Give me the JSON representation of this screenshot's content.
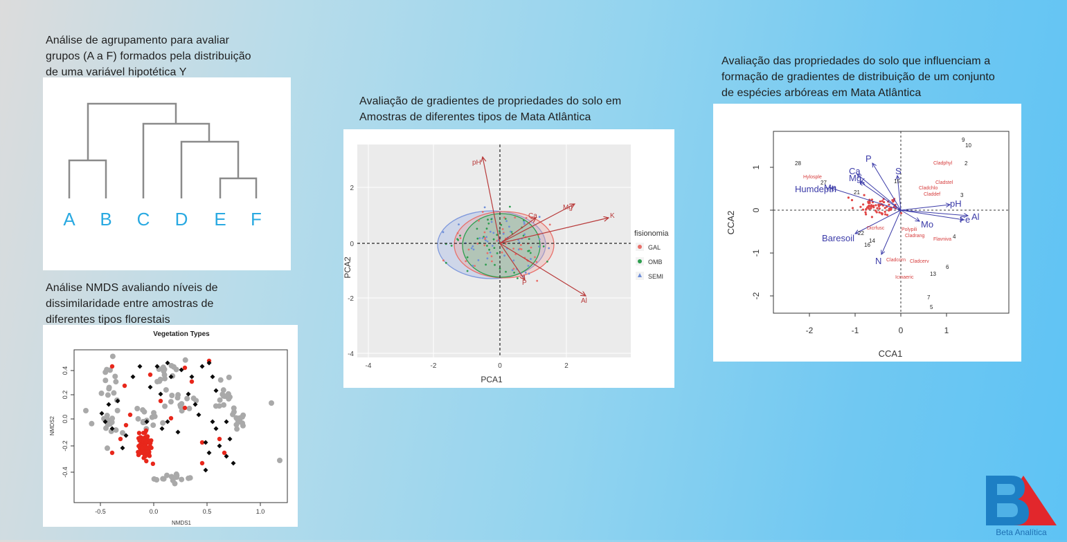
{
  "captions": {
    "cluster": [
      "Análise de agrupamento para avaliar",
      "grupos (A a F) formados pela distribuição",
      "de uma variável hipotética Y"
    ],
    "nmds": [
      "Análise NMDS avaliando níveis de",
      "dissimilaridade entre amostras de",
      "diferentes tipos florestais"
    ],
    "pca": [
      "Avaliação de gradientes de propriedades do solo em",
      "Amostras de diferentes tipos de Mata Atlântica"
    ],
    "cca": [
      "Avaliação das propriedades do solo que influenciam a",
      "formação de gradientes de distribuição de um conjunto",
      "de espécies arbóreas em Mata Atlântica"
    ]
  },
  "dendrogram": {
    "labels": [
      "A",
      "B",
      "C",
      "D",
      "E",
      "F"
    ],
    "label_color": "#29a9e1"
  },
  "nmds": {
    "title": "Vegetation Types",
    "xlabel": "NMDS1",
    "ylabel": "NMDS2",
    "xticks": [
      "-0.5",
      "0.0",
      "0.5",
      "1.0"
    ],
    "yticks": [
      "0.4",
      "0.2",
      "0.0",
      "-0.2",
      "-0.4"
    ]
  },
  "pca": {
    "xlabel": "PCA1",
    "ylabel": "PCA2",
    "xticks": [
      "-4",
      "-2",
      "0",
      "2"
    ],
    "yticks": [
      "2",
      "0",
      "-2",
      "-4"
    ],
    "vectors": [
      "pH",
      "Mg",
      "K",
      "Ca",
      "P",
      "Al"
    ],
    "legend_title": "fisionomia",
    "legend": [
      {
        "label": "GAL",
        "color": "#e8706a"
      },
      {
        "label": "OMB",
        "color": "#2e9e4f"
      },
      {
        "label": "SEMI",
        "color": "#6f8fd8"
      }
    ]
  },
  "cca": {
    "xlabel": "CCA1",
    "ylabel": "CCA2",
    "xticks": [
      "-2",
      "-1",
      "0",
      "1"
    ],
    "yticks": [
      "1",
      "0",
      "-1",
      "-2"
    ],
    "env_vectors": [
      "P",
      "S",
      "Ca",
      "Mg",
      "K",
      "Humdepth",
      "Mn",
      "pH",
      "Al",
      "Fe",
      "Mo",
      "Baresoil",
      "N"
    ],
    "species": [
      "Cladphyl",
      "Hylosple",
      "Cladstel",
      "Cladchlo",
      "Claddef",
      "Dicrfusc",
      "Polypili",
      "Cladrang",
      "Flavniva",
      "Cladcorn",
      "Cladcerv",
      "Icmaeric"
    ],
    "site_numbers": [
      "9",
      "10",
      "2",
      "28",
      "15",
      "27",
      "21",
      "3",
      "22",
      "14",
      "16",
      "4",
      "6",
      "13",
      "7",
      "5"
    ]
  },
  "logo": {
    "text": "Beta Analítica",
    "blue": "#1d7fc4",
    "red": "#e2272c"
  }
}
